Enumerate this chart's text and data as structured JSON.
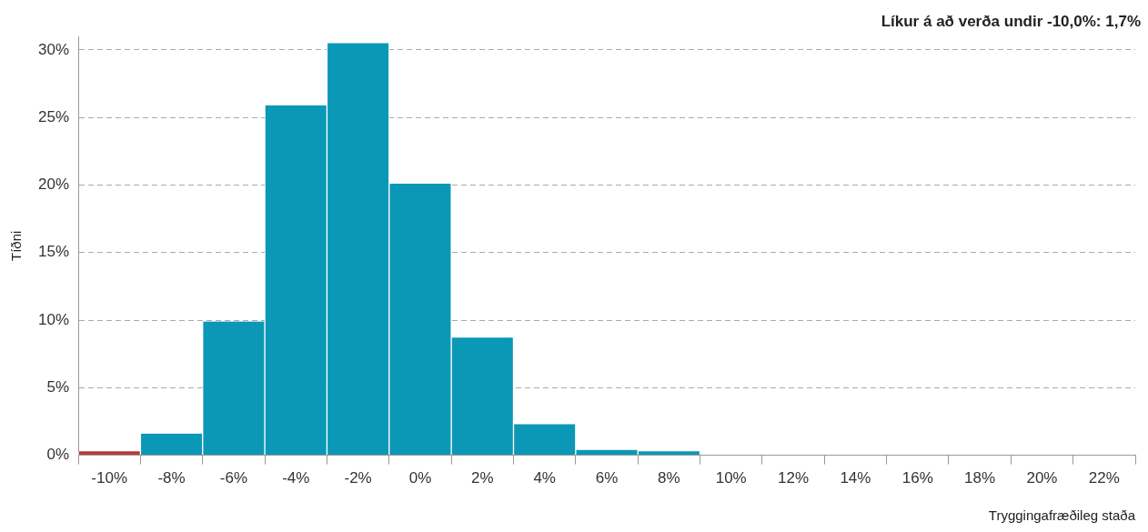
{
  "chart_data": {
    "type": "bar",
    "xlabel": "Tryggingafræðileg staða",
    "ylabel": "Tíðni",
    "annotations": [
      "Líkur á að verða undir -10,0%: 1,7%"
    ],
    "categories": [
      "-10%",
      "-8%",
      "-6%",
      "-4%",
      "-2%",
      "0%",
      "2%",
      "4%",
      "6%",
      "8%",
      "10%",
      "12%",
      "14%",
      "16%",
      "18%",
      "20%",
      "22%"
    ],
    "values": [
      0.3,
      1.6,
      9.9,
      25.9,
      30.5,
      20.1,
      8.7,
      2.3,
      0.4,
      0.3,
      0,
      0,
      0,
      0,
      0,
      0,
      0
    ],
    "colors": [
      "#b83a3a",
      "#0b98b6",
      "#0b98b6",
      "#0b98b6",
      "#0b98b6",
      "#0b98b6",
      "#0b98b6",
      "#0b98b6",
      "#0b98b6",
      "#0b98b6",
      "#0b98b6",
      "#0b98b6",
      "#0b98b6",
      "#0b98b6",
      "#0b98b6",
      "#0b98b6",
      "#0b98b6"
    ],
    "ylim": [
      0,
      31
    ],
    "yticks": [
      {
        "value": 0,
        "label": "0%"
      },
      {
        "value": 5,
        "label": "5%"
      },
      {
        "value": 10,
        "label": "10%"
      },
      {
        "value": 15,
        "label": "15%"
      },
      {
        "value": 20,
        "label": "20%"
      },
      {
        "value": 25,
        "label": "25%"
      },
      {
        "value": 30,
        "label": "30%"
      }
    ],
    "grid": "y",
    "line_style": "dashed",
    "legend": false
  }
}
